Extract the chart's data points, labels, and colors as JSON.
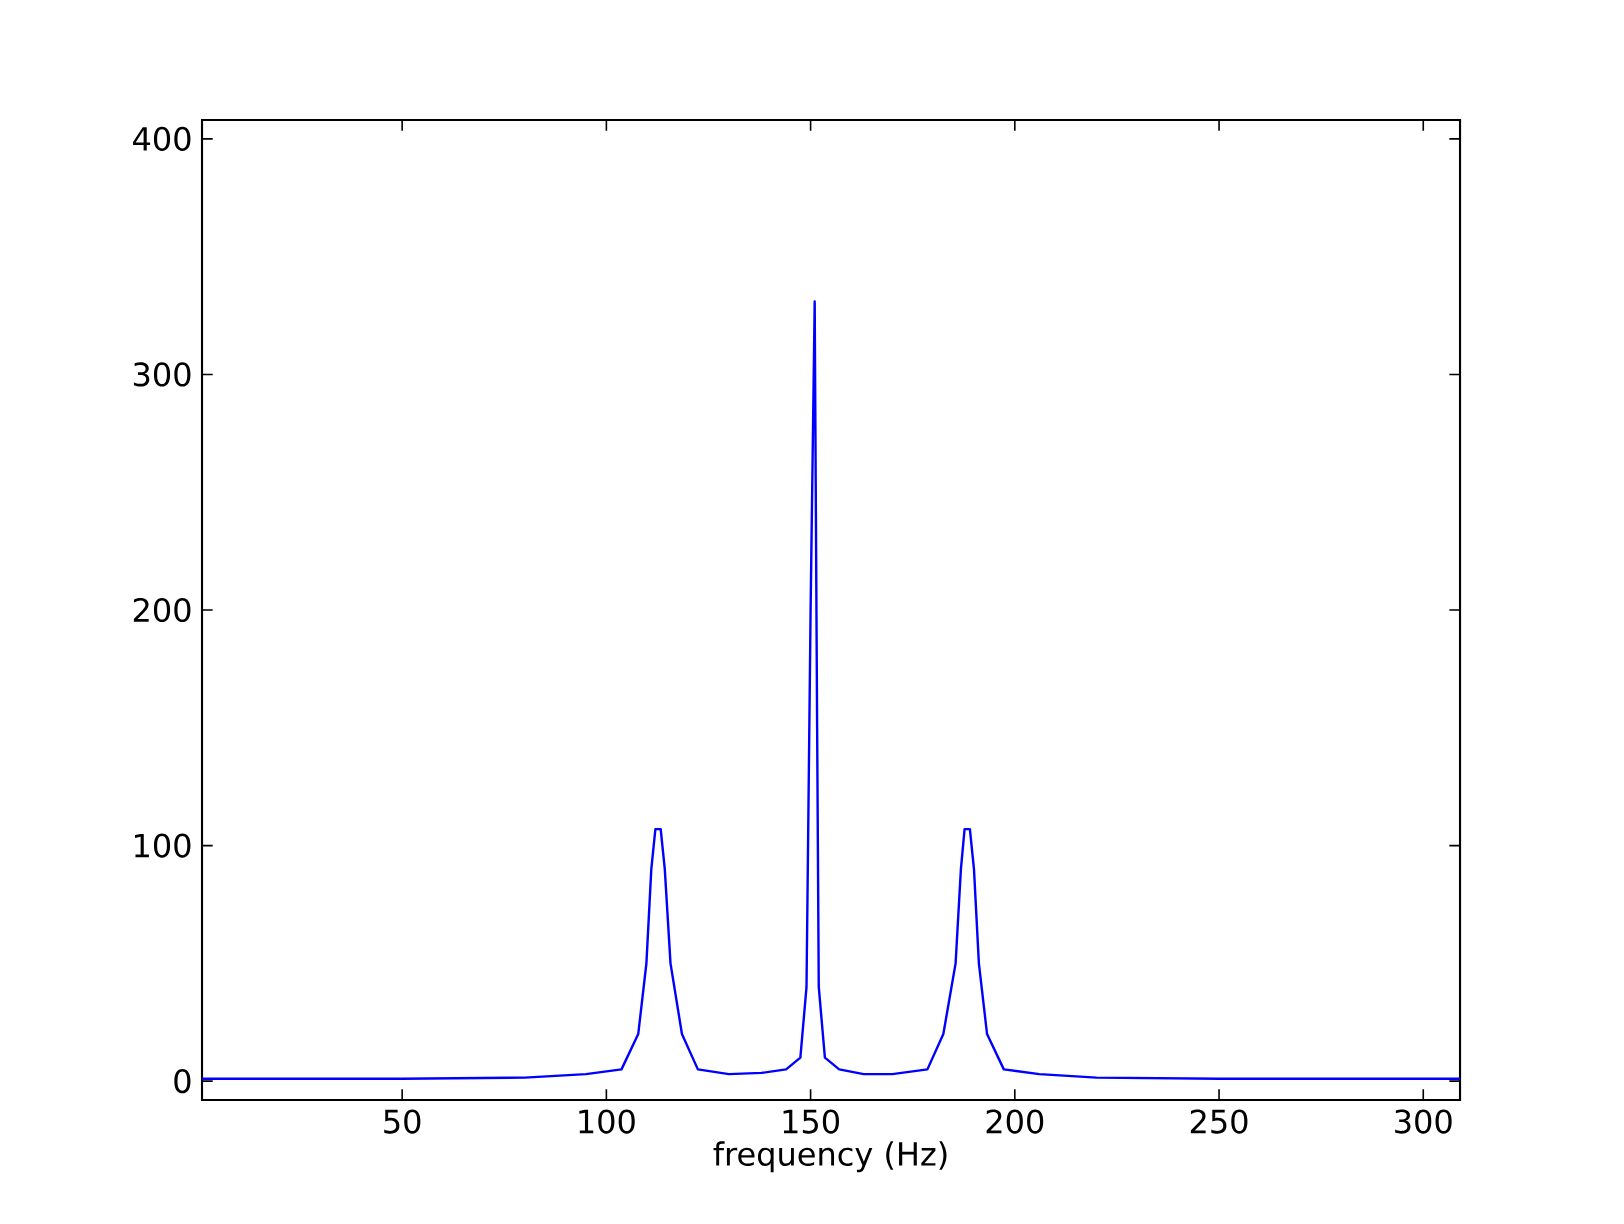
{
  "chart_data": {
    "type": "line",
    "xlabel": "frequency (Hz)",
    "x": [
      1,
      50,
      80,
      95,
      103.7,
      107.8,
      109.8,
      111,
      112,
      113.3,
      114.3,
      115.7,
      118.5,
      122.4,
      130,
      138,
      144,
      147.5,
      149,
      150,
      151,
      151.6,
      152,
      153.5,
      157,
      163,
      170,
      178.6,
      182.5,
      185.5,
      186.8,
      187.7,
      189,
      190,
      191.2,
      193.2,
      197.3,
      206,
      220,
      250,
      309
    ],
    "values": [
      1,
      1,
      1.5,
      3,
      5,
      20,
      50,
      90,
      107,
      107,
      90,
      50,
      20,
      5,
      3,
      3.5,
      5,
      10,
      40,
      200,
      331,
      150,
      40,
      10,
      5,
      3,
      3,
      5,
      20,
      50,
      90,
      107,
      107,
      90,
      50,
      20,
      5,
      3,
      1.5,
      1,
      1
    ],
    "color": "#0000ff",
    "grid": false,
    "marker": "none",
    "line_style": "solid",
    "xlim": [
      1,
      309
    ],
    "ylim": [
      -8,
      408
    ],
    "xticks": [
      50,
      100,
      150,
      200,
      250,
      300
    ],
    "yticks": [
      0,
      100,
      200,
      300,
      400
    ]
  }
}
